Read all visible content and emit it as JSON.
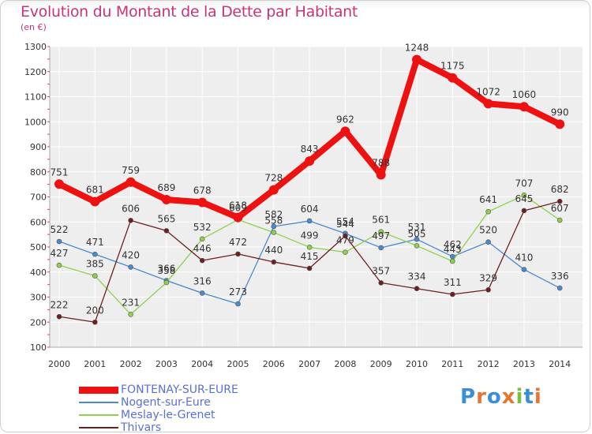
{
  "header": {
    "title": "Evolution du Montant de la Dette par Habitant",
    "subtitle": "(en €)"
  },
  "logo": {
    "text": "Proxiti",
    "letter_colors": [
      "#3a8fd9",
      "#e8742f",
      "#3a8fd9",
      "#e8742f",
      "#7bc043",
      "#3a8fd9",
      "#e8742f"
    ]
  },
  "chart_data": {
    "type": "line",
    "title": "Evolution du Montant de la Dette par Habitant",
    "subtitle": "(en €)",
    "xlabel": "",
    "ylabel": "",
    "ylim": [
      100,
      1300
    ],
    "yticks": [
      100,
      200,
      300,
      400,
      500,
      600,
      700,
      800,
      900,
      1000,
      1100,
      1200,
      1300
    ],
    "grid": true,
    "legend_position": "bottom-left",
    "x": [
      "2000",
      "2001",
      "2002",
      "2003",
      "2004",
      "2005",
      "2006",
      "2007",
      "2008",
      "2009",
      "2010",
      "2011",
      "2012",
      "2013",
      "2014"
    ],
    "series": [
      {
        "name": "FONTENAY-SUR-EURE",
        "color": "#ee1111",
        "emphasis": true,
        "values": [
          751,
          681,
          759,
          689,
          678,
          618,
          728,
          843,
          962,
          788,
          1248,
          1175,
          1072,
          1060,
          990
        ]
      },
      {
        "name": "Nogent-sur-Eure",
        "color": "#4a8ad0",
        "emphasis": false,
        "values": [
          522,
          471,
          420,
          366,
          316,
          273,
          582,
          604,
          554,
          497,
          531,
          462,
          520,
          410,
          336
        ]
      },
      {
        "name": "Meslay-le-Grenet",
        "color": "#8fd14f",
        "emphasis": false,
        "values": [
          427,
          385,
          231,
          358,
          532,
          609,
          558,
          499,
          479,
          561,
          505,
          443,
          641,
          707,
          607
        ]
      },
      {
        "name": "Thivars",
        "color": "#6e1f1f",
        "emphasis": false,
        "values": [
          222,
          200,
          606,
          565,
          446,
          472,
          440,
          415,
          544,
          357,
          334,
          311,
          329,
          645,
          682
        ]
      }
    ]
  }
}
